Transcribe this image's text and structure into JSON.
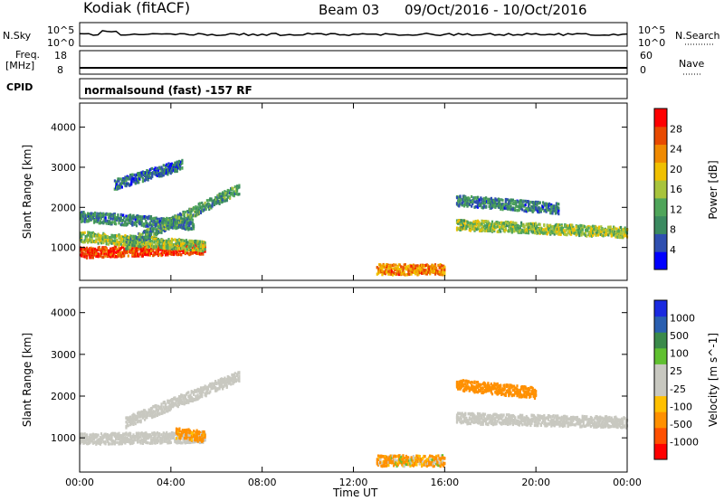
{
  "header": {
    "station": "Kodiak (fitACF)",
    "beam": "Beam 03",
    "date_range": "09/Oct/2016 - 10/Oct/2016",
    "cpid_program": "normalsound (fast) -157 RF"
  },
  "aux_panels": {
    "nsky_label": "N.Sky",
    "nsearch_label": "N.Search",
    "nsky_ticks": [
      "10^5",
      "10^0"
    ],
    "nsearch_ticks": [
      "10^5",
      "10^0"
    ],
    "freq_label_1": "Freq.",
    "freq_label_2": "[MHz]",
    "freq_ticks": [
      "18",
      "8"
    ],
    "nave_label": "Nave",
    "nave_ticks": [
      "60",
      "0"
    ],
    "cpid_label": "CPID"
  },
  "axes": {
    "xlabel": "Time UT",
    "xticks": [
      "00:00",
      "04:00",
      "08:00",
      "12:00",
      "16:00",
      "20:00",
      "00:00"
    ],
    "ylabel": "Slant Range [km]",
    "yticks": [
      "1000",
      "2000",
      "3000",
      "4000"
    ]
  },
  "colors": {
    "power_scale": [
      "#0000ff",
      "#2f4fb0",
      "#3b8a60",
      "#4fa55a",
      "#a8c43c",
      "#f0c000",
      "#f08a00",
      "#e84a00",
      "#ff0000"
    ],
    "velocity_scale": [
      "#ff0000",
      "#ff5000",
      "#ff9000",
      "#ffc000",
      "#c8c8c0",
      "#c8c8c0",
      "#60c030",
      "#3a8a4a",
      "#2a5fb0",
      "#1a2ae0"
    ],
    "ground_scatter": "#c8c8c0"
  },
  "power_colorbar": {
    "label": "Power [dB]",
    "ticks": [
      "4",
      "8",
      "12",
      "16",
      "20",
      "24",
      "28"
    ]
  },
  "velocity_colorbar": {
    "label": "Velocity [m s^-1]",
    "ticks": [
      "-1000",
      "-500",
      "-100",
      "-25",
      "25",
      "100",
      "500",
      "1000"
    ]
  },
  "chart_data": [
    {
      "type": "heatmap",
      "panel": "power",
      "title": "",
      "xlabel": "Time UT",
      "ylabel": "Slant Range [km]",
      "xlim_hours": [
        0,
        24
      ],
      "ylim_km": [
        180,
        4600
      ],
      "color_label": "Power [dB]",
      "clim": [
        0,
        30
      ],
      "features": [
        {
          "t0": 0.0,
          "t1": 5.5,
          "r_start": 900,
          "r_end": 1000,
          "db": 26
        },
        {
          "t0": 0.0,
          "t1": 5.5,
          "r_start": 1300,
          "r_end": 1050,
          "db": 14
        },
        {
          "t0": 0.0,
          "t1": 5.0,
          "r_start": 1800,
          "r_end": 1600,
          "db": 8
        },
        {
          "t0": 2.0,
          "t1": 7.0,
          "r_start": 1100,
          "r_end": 2500,
          "db": 10
        },
        {
          "t0": 1.5,
          "t1": 4.5,
          "r_start": 2600,
          "r_end": 3100,
          "db": 6
        },
        {
          "t0": 13.0,
          "t1": 16.0,
          "r_start": 480,
          "r_end": 480,
          "db": 22
        },
        {
          "t0": 16.5,
          "t1": 24.0,
          "r_start": 1600,
          "r_end": 1400,
          "db": 14
        },
        {
          "t0": 16.5,
          "t1": 21.0,
          "r_start": 2200,
          "r_end": 2000,
          "db": 8
        }
      ]
    },
    {
      "type": "heatmap",
      "panel": "velocity",
      "title": "",
      "xlabel": "Time UT",
      "ylabel": "Slant Range [km]",
      "xlim_hours": [
        0,
        24
      ],
      "ylim_km": [
        180,
        4600
      ],
      "color_label": "Velocity [m s^-1]",
      "clim": [
        -1000,
        1000
      ],
      "features": [
        {
          "t0": 0.0,
          "t1": 5.5,
          "r_start": 1000,
          "r_end": 1050,
          "ground_scatter": true
        },
        {
          "t0": 2.0,
          "t1": 7.0,
          "r_start": 1400,
          "r_end": 2500,
          "ground_scatter": true
        },
        {
          "t0": 4.2,
          "t1": 5.5,
          "r_start": 1150,
          "r_end": 1050,
          "velocity": -200
        },
        {
          "t0": 13.0,
          "t1": 16.0,
          "r_start": 480,
          "r_end": 480,
          "velocity": -150
        },
        {
          "t0": 16.5,
          "t1": 24.0,
          "r_start": 1500,
          "r_end": 1400,
          "ground_scatter": true
        },
        {
          "t0": 16.5,
          "t1": 20.0,
          "r_start": 2300,
          "r_end": 2100,
          "velocity": -300
        }
      ]
    }
  ]
}
